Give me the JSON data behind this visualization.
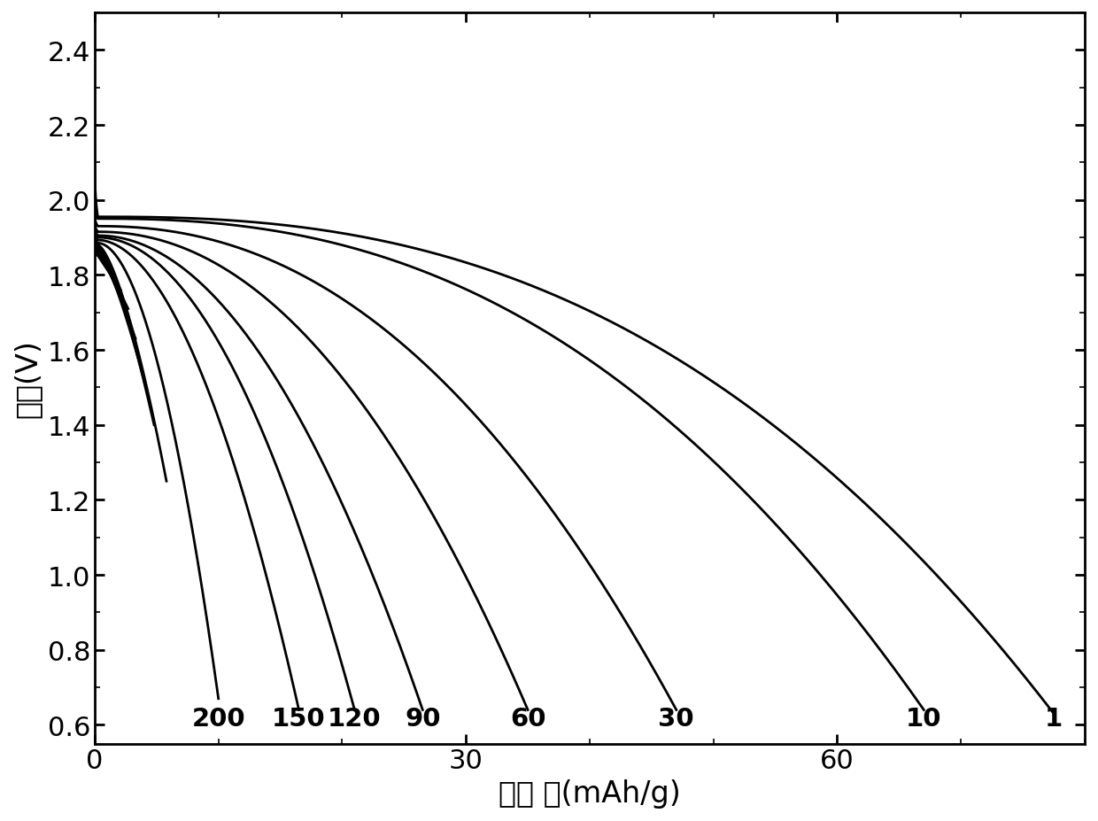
{
  "xlim": [
    0,
    80
  ],
  "ylim": [
    0.55,
    2.5
  ],
  "xticks": [
    0,
    30,
    60
  ],
  "yticks": [
    0.6,
    0.8,
    1.0,
    1.2,
    1.4,
    1.6,
    1.8,
    2.0,
    2.2,
    2.4
  ],
  "line_color": "#000000",
  "line_width": 2.0,
  "xlabel": "比容 量(mAh/g)",
  "ylabel": "电压(V)",
  "label_fontsize": 24,
  "tick_fontsize": 22,
  "curve_label_fontsize": 21,
  "curves": [
    {
      "label": "1",
      "max_x": 77.5,
      "v_start": 2.14,
      "v_top": 1.955,
      "v_end": 0.63,
      "shape": 2.5
    },
    {
      "label": "10",
      "max_x": 67.0,
      "v_start": 2.04,
      "v_top": 1.95,
      "v_end": 0.64,
      "shape": 2.4
    },
    {
      "label": "30",
      "max_x": 47.0,
      "v_start": 1.97,
      "v_top": 1.93,
      "v_end": 0.64,
      "shape": 2.2
    },
    {
      "label": "60",
      "max_x": 35.0,
      "v_start": 1.95,
      "v_top": 1.915,
      "v_end": 0.64,
      "shape": 2.1
    },
    {
      "label": "90",
      "max_x": 26.5,
      "v_start": 1.94,
      "v_top": 1.905,
      "v_end": 0.64,
      "shape": 2.0
    },
    {
      "label": "120",
      "max_x": 21.0,
      "v_start": 1.93,
      "v_top": 1.9,
      "v_end": 0.64,
      "shape": 2.0
    },
    {
      "label": "150",
      "max_x": 16.5,
      "v_start": 1.92,
      "v_top": 1.893,
      "v_end": 0.64,
      "shape": 1.9
    },
    {
      "label": "200",
      "max_x": 10.0,
      "v_start": 1.915,
      "v_top": 1.885,
      "v_end": 0.67,
      "shape": 1.9
    }
  ],
  "extra_curves": [
    {
      "max_x": 5.8,
      "v_start": 1.91,
      "v_top": 1.88,
      "v_end": 1.25,
      "shape": 1.5
    },
    {
      "max_x": 4.8,
      "v_start": 1.9,
      "v_top": 1.875,
      "v_end": 1.4,
      "shape": 1.4
    },
    {
      "max_x": 4.0,
      "v_start": 1.89,
      "v_top": 1.87,
      "v_end": 1.52,
      "shape": 1.3
    },
    {
      "max_x": 3.3,
      "v_start": 1.88,
      "v_top": 1.864,
      "v_end": 1.63,
      "shape": 1.2
    },
    {
      "max_x": 2.7,
      "v_start": 1.87,
      "v_top": 1.858,
      "v_end": 1.71,
      "shape": 1.1
    },
    {
      "max_x": 2.1,
      "v_start": 1.86,
      "v_top": 1.852,
      "v_end": 1.76,
      "shape": 1.0
    }
  ]
}
